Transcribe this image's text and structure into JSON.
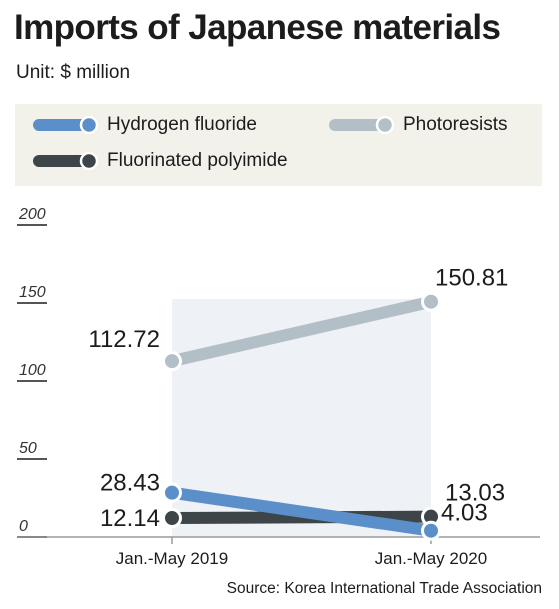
{
  "title": "Imports of Japanese materials",
  "unit": "Unit: $ million",
  "source": "Source: Korea International Trade Association",
  "colors": {
    "hydrogen_fluoride": "#5b8fc9",
    "photoresists": "#b3bfc6",
    "fluorinated_polyimide": "#3d4549",
    "legend_bg": "#f2f1ea",
    "band": "#eef1f6",
    "axis": "#555555"
  },
  "legend": {
    "hydrogen_fluoride": "Hydrogen fluoride",
    "photoresists": "Photoresists",
    "fluorinated_polyimide": "Fluorinated polyimide"
  },
  "chart_data": {
    "type": "line",
    "title": "Imports of Japanese materials",
    "ylabel": "Unit: $ million",
    "categories": [
      "Jan.-May 2019",
      "Jan.-May 2020"
    ],
    "ylim": [
      0,
      200
    ],
    "yticks": [
      "0",
      "50",
      "100",
      "150",
      "200"
    ],
    "grid": false,
    "legend_position": "top",
    "series": [
      {
        "key": "photoresists",
        "name": "Photoresists",
        "values": [
          112.72,
          150.81
        ],
        "labels": [
          "112.72",
          "150.81"
        ]
      },
      {
        "key": "hydrogen_fluoride",
        "name": "Hydrogen fluoride",
        "values": [
          28.43,
          4.03
        ],
        "labels": [
          "28.43",
          "4.03"
        ]
      },
      {
        "key": "fluorinated_polyimide",
        "name": "Fluorinated polyimide",
        "values": [
          12.14,
          13.03
        ],
        "labels": [
          "12.14",
          "13.03"
        ]
      }
    ]
  }
}
